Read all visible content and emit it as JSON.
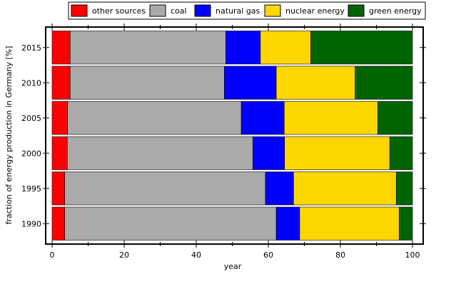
{
  "chart_data": {
    "type": "bar",
    "orientation": "horizontal",
    "stacked": true,
    "categories": [
      "1990",
      "1995",
      "2000",
      "2005",
      "2010",
      "2015"
    ],
    "series": [
      {
        "name": "other sources",
        "color": "#ff0000",
        "values": [
          3.5,
          3.5,
          4.2,
          4.3,
          5.0,
          5.0
        ]
      },
      {
        "name": "coal",
        "color": "#aaaaaa",
        "values": [
          58.7,
          55.7,
          51.5,
          48.2,
          42.8,
          43.2
        ]
      },
      {
        "name": "natural gas",
        "color": "#0000ff",
        "values": [
          6.5,
          7.8,
          8.8,
          11.9,
          14.4,
          9.6
        ]
      },
      {
        "name": "nuclear energy",
        "color": "#ffd700",
        "values": [
          27.6,
          28.5,
          29.2,
          26.0,
          21.9,
          14.0
        ]
      },
      {
        "name": "green energy",
        "color": "#006400",
        "values": [
          3.7,
          4.5,
          6.3,
          9.6,
          15.9,
          28.2
        ]
      }
    ],
    "xlabel": "year",
    "ylabel": "fraction of energy production in Germany [%]",
    "xlim": [
      0,
      100
    ],
    "xticks": [
      "0",
      "20",
      "40",
      "60",
      "80",
      "100"
    ],
    "legend_position": "top-right",
    "grid": false
  }
}
